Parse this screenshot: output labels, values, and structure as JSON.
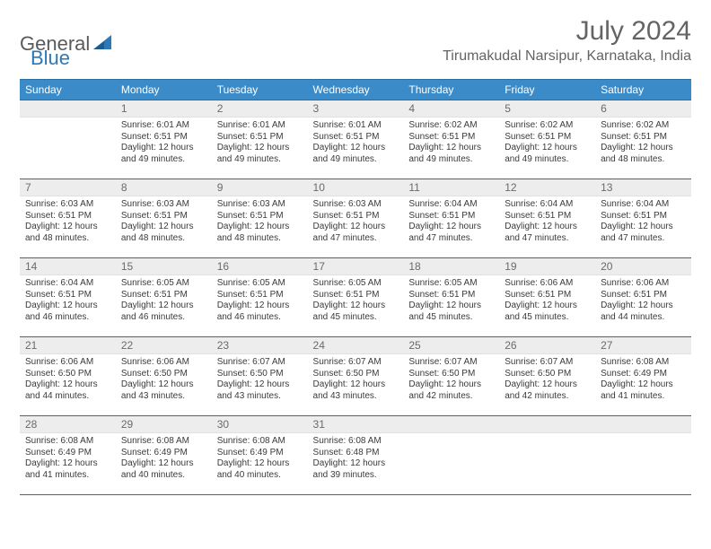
{
  "brand": {
    "name_gray": "General",
    "name_blue": "Blue"
  },
  "header": {
    "month_title": "July 2024",
    "location": "Tirumakudal Narsipur, Karnataka, India"
  },
  "colors": {
    "header_bg": "#3a8bc8",
    "header_text": "#ffffff",
    "row_rule": "#2a6fa3",
    "daynum_bg": "#ededed",
    "body_text": "#3a3a3a",
    "title_text": "#646464"
  },
  "weekdays": [
    "Sunday",
    "Monday",
    "Tuesday",
    "Wednesday",
    "Thursday",
    "Friday",
    "Saturday"
  ],
  "weeks": [
    [
      null,
      {
        "n": "1",
        "sunrise": "6:01 AM",
        "sunset": "6:51 PM",
        "dl": "12 hours and 49 minutes."
      },
      {
        "n": "2",
        "sunrise": "6:01 AM",
        "sunset": "6:51 PM",
        "dl": "12 hours and 49 minutes."
      },
      {
        "n": "3",
        "sunrise": "6:01 AM",
        "sunset": "6:51 PM",
        "dl": "12 hours and 49 minutes."
      },
      {
        "n": "4",
        "sunrise": "6:02 AM",
        "sunset": "6:51 PM",
        "dl": "12 hours and 49 minutes."
      },
      {
        "n": "5",
        "sunrise": "6:02 AM",
        "sunset": "6:51 PM",
        "dl": "12 hours and 49 minutes."
      },
      {
        "n": "6",
        "sunrise": "6:02 AM",
        "sunset": "6:51 PM",
        "dl": "12 hours and 48 minutes."
      }
    ],
    [
      {
        "n": "7",
        "sunrise": "6:03 AM",
        "sunset": "6:51 PM",
        "dl": "12 hours and 48 minutes."
      },
      {
        "n": "8",
        "sunrise": "6:03 AM",
        "sunset": "6:51 PM",
        "dl": "12 hours and 48 minutes."
      },
      {
        "n": "9",
        "sunrise": "6:03 AM",
        "sunset": "6:51 PM",
        "dl": "12 hours and 48 minutes."
      },
      {
        "n": "10",
        "sunrise": "6:03 AM",
        "sunset": "6:51 PM",
        "dl": "12 hours and 47 minutes."
      },
      {
        "n": "11",
        "sunrise": "6:04 AM",
        "sunset": "6:51 PM",
        "dl": "12 hours and 47 minutes."
      },
      {
        "n": "12",
        "sunrise": "6:04 AM",
        "sunset": "6:51 PM",
        "dl": "12 hours and 47 minutes."
      },
      {
        "n": "13",
        "sunrise": "6:04 AM",
        "sunset": "6:51 PM",
        "dl": "12 hours and 47 minutes."
      }
    ],
    [
      {
        "n": "14",
        "sunrise": "6:04 AM",
        "sunset": "6:51 PM",
        "dl": "12 hours and 46 minutes."
      },
      {
        "n": "15",
        "sunrise": "6:05 AM",
        "sunset": "6:51 PM",
        "dl": "12 hours and 46 minutes."
      },
      {
        "n": "16",
        "sunrise": "6:05 AM",
        "sunset": "6:51 PM",
        "dl": "12 hours and 46 minutes."
      },
      {
        "n": "17",
        "sunrise": "6:05 AM",
        "sunset": "6:51 PM",
        "dl": "12 hours and 45 minutes."
      },
      {
        "n": "18",
        "sunrise": "6:05 AM",
        "sunset": "6:51 PM",
        "dl": "12 hours and 45 minutes."
      },
      {
        "n": "19",
        "sunrise": "6:06 AM",
        "sunset": "6:51 PM",
        "dl": "12 hours and 45 minutes."
      },
      {
        "n": "20",
        "sunrise": "6:06 AM",
        "sunset": "6:51 PM",
        "dl": "12 hours and 44 minutes."
      }
    ],
    [
      {
        "n": "21",
        "sunrise": "6:06 AM",
        "sunset": "6:50 PM",
        "dl": "12 hours and 44 minutes."
      },
      {
        "n": "22",
        "sunrise": "6:06 AM",
        "sunset": "6:50 PM",
        "dl": "12 hours and 43 minutes."
      },
      {
        "n": "23",
        "sunrise": "6:07 AM",
        "sunset": "6:50 PM",
        "dl": "12 hours and 43 minutes."
      },
      {
        "n": "24",
        "sunrise": "6:07 AM",
        "sunset": "6:50 PM",
        "dl": "12 hours and 43 minutes."
      },
      {
        "n": "25",
        "sunrise": "6:07 AM",
        "sunset": "6:50 PM",
        "dl": "12 hours and 42 minutes."
      },
      {
        "n": "26",
        "sunrise": "6:07 AM",
        "sunset": "6:50 PM",
        "dl": "12 hours and 42 minutes."
      },
      {
        "n": "27",
        "sunrise": "6:08 AM",
        "sunset": "6:49 PM",
        "dl": "12 hours and 41 minutes."
      }
    ],
    [
      {
        "n": "28",
        "sunrise": "6:08 AM",
        "sunset": "6:49 PM",
        "dl": "12 hours and 41 minutes."
      },
      {
        "n": "29",
        "sunrise": "6:08 AM",
        "sunset": "6:49 PM",
        "dl": "12 hours and 40 minutes."
      },
      {
        "n": "30",
        "sunrise": "6:08 AM",
        "sunset": "6:49 PM",
        "dl": "12 hours and 40 minutes."
      },
      {
        "n": "31",
        "sunrise": "6:08 AM",
        "sunset": "6:48 PM",
        "dl": "12 hours and 39 minutes."
      },
      null,
      null,
      null
    ]
  ],
  "labels": {
    "sunrise": "Sunrise:",
    "sunset": "Sunset:",
    "daylight": "Daylight:"
  }
}
